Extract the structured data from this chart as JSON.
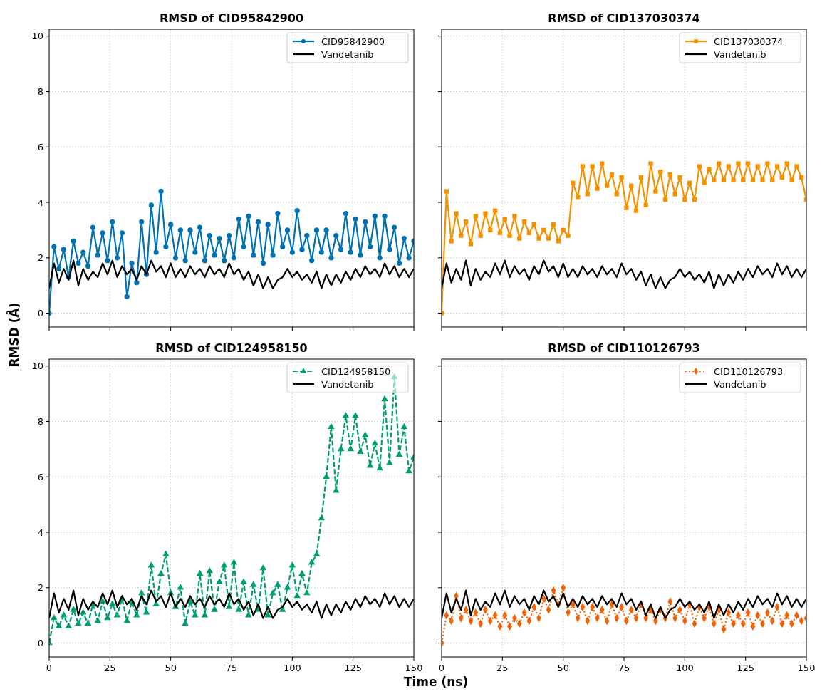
{
  "chart_data": [
    {
      "type": "line",
      "title": "RMSD of CID95842900",
      "ylabel": "RMSD (Å)",
      "xlim": [
        0,
        150
      ],
      "ylim": [
        -0.5,
        10.25
      ],
      "xticks": [
        0,
        25,
        50,
        75,
        100,
        125,
        150
      ],
      "yticks": [
        0,
        2,
        4,
        6,
        8,
        10
      ],
      "grid": true,
      "legend": "top right",
      "tick_labels": "y",
      "x": [
        0,
        2,
        4,
        6,
        8,
        10,
        12,
        14,
        16,
        18,
        20,
        22,
        24,
        26,
        28,
        30,
        32,
        34,
        36,
        38,
        40,
        42,
        44,
        46,
        48,
        50,
        52,
        54,
        56,
        58,
        60,
        62,
        64,
        66,
        68,
        70,
        72,
        74,
        76,
        78,
        80,
        82,
        84,
        86,
        88,
        90,
        92,
        94,
        96,
        98,
        100,
        102,
        104,
        106,
        108,
        110,
        112,
        114,
        116,
        118,
        120,
        122,
        124,
        126,
        128,
        130,
        132,
        134,
        136,
        138,
        140,
        142,
        144,
        146,
        148,
        150
      ],
      "series": [
        {
          "name": "CID95842900",
          "color": "#0072b2",
          "marker": "circle",
          "line_style": "solid",
          "values": [
            0,
            2.4,
            1.6,
            2.3,
            1.3,
            2.6,
            1.8,
            2.2,
            1.7,
            3.1,
            2.1,
            2.9,
            1.9,
            3.3,
            2.0,
            2.9,
            0.6,
            1.8,
            1.1,
            3.3,
            1.4,
            3.9,
            2.2,
            4.4,
            2.4,
            3.2,
            2.0,
            3.0,
            1.9,
            3.0,
            2.2,
            3.1,
            1.9,
            2.8,
            2.1,
            2.7,
            1.9,
            2.8,
            2.0,
            3.4,
            2.4,
            3.5,
            2.1,
            3.3,
            1.8,
            3.2,
            2.1,
            3.6,
            2.4,
            3.0,
            2.2,
            3.7,
            2.3,
            2.8,
            1.9,
            3.0,
            2.2,
            3.0,
            2.0,
            2.8,
            2.3,
            3.6,
            2.2,
            3.4,
            2.1,
            3.3,
            2.4,
            3.5,
            2.0,
            3.5,
            2.3,
            3.1,
            1.8,
            2.7,
            2.0,
            2.6
          ]
        },
        {
          "name": "Vandetanib",
          "color": "#000000",
          "marker": "none",
          "line_style": "solid",
          "values": [
            0.9,
            1.8,
            1.1,
            1.6,
            1.2,
            1.9,
            1.0,
            1.6,
            1.2,
            1.5,
            1.3,
            1.8,
            1.4,
            1.9,
            1.3,
            1.7,
            1.4,
            1.6,
            1.2,
            1.7,
            1.4,
            1.9,
            1.5,
            1.7,
            1.3,
            1.8,
            1.3,
            1.6,
            1.3,
            1.7,
            1.4,
            1.6,
            1.3,
            1.7,
            1.4,
            1.6,
            1.3,
            1.8,
            1.4,
            1.6,
            1.2,
            1.5,
            1.0,
            1.4,
            0.9,
            1.3,
            0.9,
            1.2,
            1.3,
            1.6,
            1.3,
            1.5,
            1.2,
            1.4,
            1.1,
            1.5,
            0.9,
            1.4,
            1.0,
            1.4,
            1.1,
            1.5,
            1.2,
            1.6,
            1.3,
            1.7,
            1.4,
            1.6,
            1.3,
            1.8,
            1.4,
            1.7,
            1.3,
            1.6,
            1.3,
            1.6
          ]
        }
      ]
    },
    {
      "type": "line",
      "title": "RMSD of CID137030374",
      "xlim": [
        0,
        150
      ],
      "ylim": [
        -0.5,
        10.25
      ],
      "xticks": [
        0,
        25,
        50,
        75,
        100,
        125,
        150
      ],
      "yticks": [
        0,
        2,
        4,
        6,
        8,
        10
      ],
      "grid": true,
      "legend": "top right",
      "tick_labels": false,
      "x": [
        0,
        2,
        4,
        6,
        8,
        10,
        12,
        14,
        16,
        18,
        20,
        22,
        24,
        26,
        28,
        30,
        32,
        34,
        36,
        38,
        40,
        42,
        44,
        46,
        48,
        50,
        52,
        54,
        56,
        58,
        60,
        62,
        64,
        66,
        68,
        70,
        72,
        74,
        76,
        78,
        80,
        82,
        84,
        86,
        88,
        90,
        92,
        94,
        96,
        98,
        100,
        102,
        104,
        106,
        108,
        110,
        112,
        114,
        116,
        118,
        120,
        122,
        124,
        126,
        128,
        130,
        132,
        134,
        136,
        138,
        140,
        142,
        144,
        146,
        148,
        150
      ],
      "series": [
        {
          "name": "CID137030374",
          "color": "#f39200",
          "marker": "square",
          "line_style": "solid",
          "values": [
            0,
            4.4,
            2.6,
            3.6,
            2.8,
            3.3,
            2.5,
            3.5,
            2.8,
            3.6,
            3.0,
            3.7,
            2.9,
            3.4,
            2.8,
            3.5,
            2.7,
            3.3,
            2.9,
            3.2,
            2.7,
            3.0,
            2.7,
            3.2,
            2.6,
            3.0,
            2.8,
            4.7,
            4.2,
            5.3,
            4.3,
            5.3,
            4.5,
            5.4,
            4.6,
            5.0,
            4.3,
            4.9,
            3.8,
            4.6,
            3.7,
            4.9,
            3.9,
            5.4,
            4.4,
            5.1,
            4.1,
            5.0,
            4.3,
            4.9,
            4.1,
            4.7,
            4.1,
            5.3,
            4.7,
            5.2,
            4.8,
            5.4,
            4.8,
            5.3,
            4.8,
            5.4,
            4.8,
            5.4,
            4.8,
            5.3,
            4.8,
            5.4,
            4.8,
            5.3,
            4.9,
            5.4,
            4.8,
            5.3,
            4.9,
            4.1
          ]
        },
        {
          "name": "Vandetanib",
          "color": "#000000",
          "marker": "none",
          "line_style": "solid",
          "values": [
            0.9,
            1.8,
            1.1,
            1.6,
            1.2,
            1.9,
            1.0,
            1.6,
            1.2,
            1.5,
            1.3,
            1.8,
            1.4,
            1.9,
            1.3,
            1.7,
            1.4,
            1.6,
            1.2,
            1.7,
            1.4,
            1.9,
            1.5,
            1.7,
            1.3,
            1.8,
            1.3,
            1.6,
            1.3,
            1.7,
            1.4,
            1.6,
            1.3,
            1.7,
            1.4,
            1.6,
            1.3,
            1.8,
            1.4,
            1.6,
            1.2,
            1.5,
            1.0,
            1.4,
            0.9,
            1.3,
            0.9,
            1.2,
            1.3,
            1.6,
            1.3,
            1.5,
            1.2,
            1.4,
            1.1,
            1.5,
            0.9,
            1.4,
            1.0,
            1.4,
            1.1,
            1.5,
            1.2,
            1.6,
            1.3,
            1.7,
            1.4,
            1.6,
            1.3,
            1.8,
            1.4,
            1.7,
            1.3,
            1.6,
            1.3,
            1.6
          ]
        }
      ]
    },
    {
      "type": "line",
      "title": "RMSD of CID124958150",
      "xlabel": "Time (ns)",
      "xlim": [
        0,
        150
      ],
      "ylim": [
        -0.5,
        10.25
      ],
      "xticks": [
        0,
        25,
        50,
        75,
        100,
        125,
        150
      ],
      "yticks": [
        0,
        2,
        4,
        6,
        8,
        10
      ],
      "grid": true,
      "legend": "top right",
      "x": [
        0,
        2,
        4,
        6,
        8,
        10,
        12,
        14,
        16,
        18,
        20,
        22,
        24,
        26,
        28,
        30,
        32,
        34,
        36,
        38,
        40,
        42,
        44,
        46,
        48,
        50,
        52,
        54,
        56,
        58,
        60,
        62,
        64,
        66,
        68,
        70,
        72,
        74,
        76,
        78,
        80,
        82,
        84,
        86,
        88,
        90,
        92,
        94,
        96,
        98,
        100,
        102,
        104,
        106,
        108,
        110,
        112,
        114,
        116,
        118,
        120,
        122,
        124,
        126,
        128,
        130,
        132,
        134,
        136,
        138,
        140,
        142,
        144,
        146,
        148,
        150
      ],
      "series": [
        {
          "name": "CID124958150",
          "color": "#009e73",
          "marker": "triangle",
          "line_style": "dashed",
          "values": [
            0,
            0.9,
            0.6,
            1.0,
            0.6,
            1.2,
            0.7,
            1.1,
            0.7,
            1.4,
            0.8,
            1.5,
            0.9,
            1.4,
            1.0,
            1.6,
            0.8,
            1.5,
            1.0,
            1.8,
            1.1,
            2.8,
            1.4,
            2.5,
            3.2,
            1.8,
            1.3,
            2.0,
            0.7,
            1.5,
            1.0,
            2.5,
            1.0,
            2.6,
            1.2,
            2.2,
            2.8,
            1.3,
            2.9,
            1.2,
            2.2,
            1.0,
            2.1,
            1.2,
            2.7,
            1.0,
            1.8,
            2.1,
            1.2,
            2.0,
            2.8,
            1.7,
            2.5,
            1.8,
            2.9,
            3.2,
            4.5,
            6.0,
            7.8,
            5.5,
            7.0,
            8.2,
            7.0,
            8.2,
            6.9,
            7.5,
            6.4,
            7.2,
            6.3,
            8.8,
            6.5,
            9.6,
            6.8,
            7.8,
            6.2,
            6.7
          ]
        },
        {
          "name": "Vandetanib",
          "color": "#000000",
          "marker": "none",
          "line_style": "solid",
          "values": [
            0.9,
            1.8,
            1.1,
            1.6,
            1.2,
            1.9,
            1.0,
            1.6,
            1.2,
            1.5,
            1.3,
            1.8,
            1.4,
            1.9,
            1.3,
            1.7,
            1.4,
            1.6,
            1.2,
            1.7,
            1.4,
            1.9,
            1.5,
            1.7,
            1.3,
            1.8,
            1.3,
            1.6,
            1.3,
            1.7,
            1.4,
            1.6,
            1.3,
            1.7,
            1.4,
            1.6,
            1.3,
            1.8,
            1.4,
            1.6,
            1.2,
            1.5,
            1.0,
            1.4,
            0.9,
            1.3,
            0.9,
            1.2,
            1.3,
            1.6,
            1.3,
            1.5,
            1.2,
            1.4,
            1.1,
            1.5,
            0.9,
            1.4,
            1.0,
            1.4,
            1.1,
            1.5,
            1.2,
            1.6,
            1.3,
            1.7,
            1.4,
            1.6,
            1.3,
            1.8,
            1.4,
            1.7,
            1.3,
            1.6,
            1.3,
            1.6
          ]
        }
      ]
    },
    {
      "type": "line",
      "title": "RMSD of CID110126793",
      "xlim": [
        0,
        150
      ],
      "ylim": [
        -0.5,
        10.25
      ],
      "xticks": [
        0,
        25,
        50,
        75,
        100,
        125,
        150
      ],
      "yticks": [
        0,
        2,
        4,
        6,
        8,
        10
      ],
      "grid": true,
      "legend": "top right",
      "tick_labels": "x",
      "x": [
        0,
        2,
        4,
        6,
        8,
        10,
        12,
        14,
        16,
        18,
        20,
        22,
        24,
        26,
        28,
        30,
        32,
        34,
        36,
        38,
        40,
        42,
        44,
        46,
        48,
        50,
        52,
        54,
        56,
        58,
        60,
        62,
        64,
        66,
        68,
        70,
        72,
        74,
        76,
        78,
        80,
        82,
        84,
        86,
        88,
        90,
        92,
        94,
        96,
        98,
        100,
        102,
        104,
        106,
        108,
        110,
        112,
        114,
        116,
        118,
        120,
        122,
        124,
        126,
        128,
        130,
        132,
        134,
        136,
        138,
        140,
        142,
        144,
        146,
        148,
        150
      ],
      "series": [
        {
          "name": "CID110126793",
          "color": "#ee6306",
          "marker": "diamond",
          "line_style": "dotted",
          "values": [
            0,
            1.0,
            0.8,
            1.7,
            0.9,
            1.2,
            0.8,
            1.1,
            0.7,
            1.2,
            0.8,
            1.0,
            0.6,
            1.0,
            0.6,
            0.9,
            0.7,
            1.1,
            0.8,
            1.3,
            0.9,
            1.6,
            1.2,
            1.9,
            1.4,
            2.0,
            1.1,
            1.4,
            0.9,
            1.3,
            0.8,
            1.3,
            0.9,
            1.2,
            0.8,
            1.4,
            0.9,
            1.3,
            0.8,
            1.2,
            0.9,
            1.4,
            0.9,
            1.2,
            0.8,
            1.2,
            0.9,
            1.5,
            0.9,
            1.2,
            0.8,
            1.4,
            0.7,
            1.3,
            0.9,
            1.3,
            0.7,
            1.2,
            0.5,
            1.1,
            0.7,
            1.0,
            0.7,
            1.1,
            0.6,
            1.0,
            0.7,
            1.1,
            0.8,
            1.3,
            0.7,
            1.0,
            0.7,
            1.0,
            0.8,
            0.9
          ]
        },
        {
          "name": "Vandetanib",
          "color": "#000000",
          "marker": "none",
          "line_style": "solid",
          "values": [
            0.9,
            1.8,
            1.1,
            1.6,
            1.2,
            1.9,
            1.0,
            1.6,
            1.2,
            1.5,
            1.3,
            1.8,
            1.4,
            1.9,
            1.3,
            1.7,
            1.4,
            1.6,
            1.2,
            1.7,
            1.4,
            1.9,
            1.5,
            1.7,
            1.3,
            1.8,
            1.3,
            1.6,
            1.3,
            1.7,
            1.4,
            1.6,
            1.3,
            1.7,
            1.4,
            1.6,
            1.3,
            1.8,
            1.4,
            1.6,
            1.2,
            1.5,
            1.0,
            1.4,
            0.9,
            1.3,
            0.9,
            1.2,
            1.3,
            1.6,
            1.3,
            1.5,
            1.2,
            1.4,
            1.1,
            1.5,
            0.9,
            1.4,
            1.0,
            1.4,
            1.1,
            1.5,
            1.2,
            1.6,
            1.3,
            1.7,
            1.4,
            1.6,
            1.3,
            1.8,
            1.4,
            1.7,
            1.3,
            1.6,
            1.3,
            1.6
          ]
        }
      ]
    }
  ]
}
